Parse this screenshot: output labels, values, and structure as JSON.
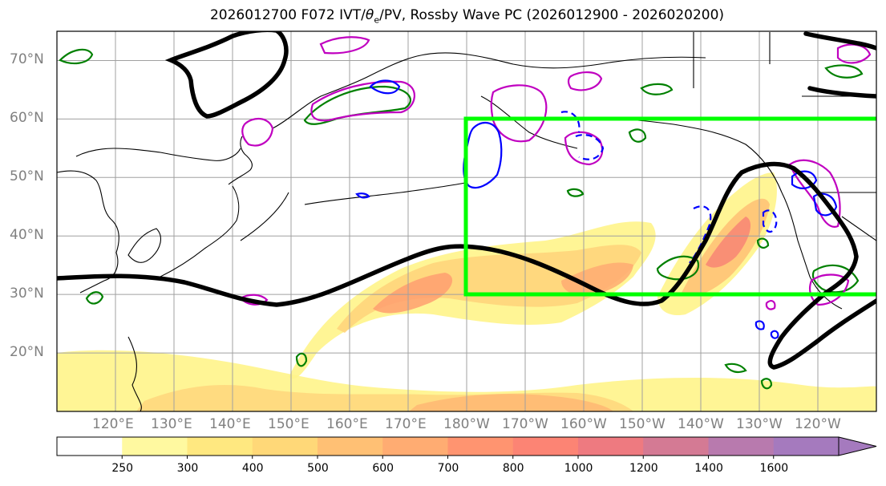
{
  "title": {
    "prefix": "2026012700 F072 IVT/",
    "theta": "θ",
    "theta_sub": "e",
    "suffix": "/PV, Rossby Wave PC (2026012900 - 2026020200)"
  },
  "map": {
    "lat_labels": [
      "70°N",
      "60°N",
      "50°N",
      "40°N",
      "30°N",
      "20°N"
    ],
    "lon_labels": [
      "120°E",
      "130°E",
      "140°E",
      "150°E",
      "160°E",
      "170°E",
      "180°W",
      "170°W",
      "160°W",
      "150°W",
      "140°W",
      "130°W",
      "120°W"
    ],
    "extent": {
      "lon_min": 110,
      "lon_max": 250,
      "lat_min": 10,
      "lat_max": 75
    },
    "region_box": {
      "lon_min": 180,
      "lon_max": 250,
      "lat_min": 30,
      "lat_max": 60
    },
    "colors": {
      "region_box": "#00ff00",
      "rossby_wave": "#000000",
      "theta_e": "#008000",
      "pv_positive": "#c000c0",
      "pv_negative": "#0000ff",
      "land": "#000000"
    }
  },
  "colorbar": {
    "levels": [
      "250",
      "300",
      "400",
      "500",
      "600",
      "700",
      "800",
      "1000",
      "1200",
      "1400",
      "1600"
    ],
    "colors": [
      "#ffffff",
      "#fff9a0",
      "#ffe880",
      "#ffd878",
      "#ffc074",
      "#ffac72",
      "#ff9470",
      "#fc8474",
      "#ee7a80",
      "#d47a94",
      "#b87aae",
      "#a57abe"
    ]
  }
}
